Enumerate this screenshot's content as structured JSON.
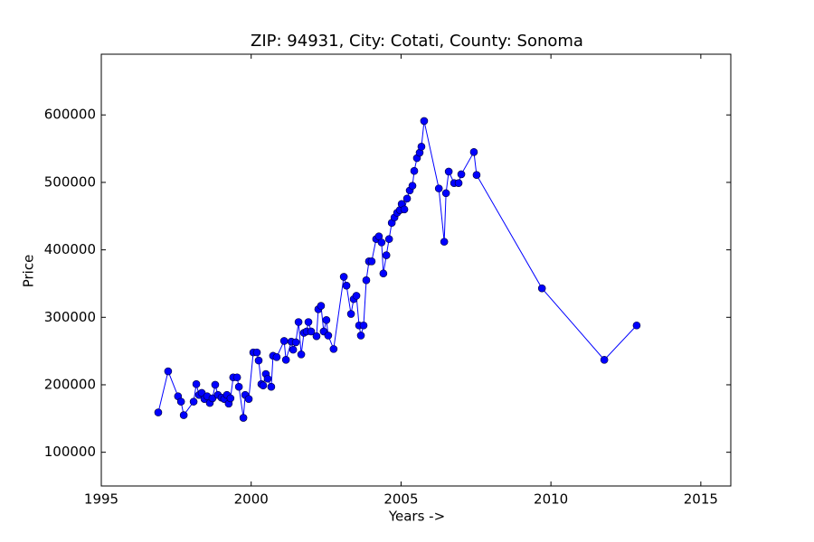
{
  "chart_data": {
    "type": "line",
    "title": "ZIP: 94931, City: Cotati, County: Sonoma",
    "x_label": "Years ->",
    "y_label": "Price",
    "x": [
      1996.9,
      1997.23,
      1997.56,
      1997.66,
      1997.75,
      1998.08,
      1998.17,
      1998.26,
      1998.35,
      1998.44,
      1998.53,
      1998.62,
      1998.71,
      1998.8,
      1998.89,
      1999.01,
      1999.1,
      1999.19,
      1999.25,
      1999.31,
      1999.4,
      1999.53,
      1999.59,
      1999.74,
      1999.8,
      1999.92,
      2000.07,
      2000.19,
      2000.25,
      2000.34,
      2000.4,
      2000.49,
      2000.55,
      2000.67,
      2000.73,
      2000.85,
      2001.1,
      2001.16,
      2001.34,
      2001.4,
      2001.49,
      2001.58,
      2001.67,
      2001.76,
      2001.85,
      2001.91,
      2002.0,
      2002.18,
      2002.24,
      2002.33,
      2002.42,
      2002.51,
      2002.57,
      2002.75,
      2003.09,
      2003.18,
      2003.33,
      2003.42,
      2003.51,
      2003.6,
      2003.66,
      2003.75,
      2003.84,
      2003.93,
      2004.02,
      2004.17,
      2004.26,
      2004.35,
      2004.41,
      2004.51,
      2004.6,
      2004.69,
      2004.78,
      2004.87,
      2004.96,
      2005.02,
      2005.11,
      2005.2,
      2005.29,
      2005.38,
      2005.44,
      2005.53,
      2005.62,
      2005.68,
      2005.77,
      2006.26,
      2006.44,
      2006.5,
      2006.59,
      2006.77,
      2006.92,
      2007.01,
      2007.43,
      2007.52,
      2009.7,
      2011.78,
      2012.86
    ],
    "series": [
      {
        "name": "Price",
        "color": "#0000ff",
        "values": [
          159000,
          220000,
          183000,
          175000,
          155000,
          175000,
          201000,
          185000,
          188000,
          179000,
          183000,
          173000,
          180000,
          200000,
          185000,
          181000,
          179000,
          185000,
          172000,
          180000,
          211000,
          211000,
          197000,
          151000,
          185000,
          179000,
          248000,
          248000,
          236000,
          201000,
          199000,
          216000,
          209000,
          197000,
          243000,
          241000,
          265000,
          237000,
          264000,
          252000,
          263000,
          293000,
          245000,
          277000,
          279000,
          293000,
          279000,
          272000,
          312000,
          317000,
          279000,
          296000,
          273000,
          253000,
          360000,
          347000,
          305000,
          327000,
          332000,
          288000,
          273000,
          288000,
          355000,
          383000,
          383000,
          416000,
          420000,
          411000,
          365000,
          392000,
          416000,
          440000,
          448000,
          455000,
          459000,
          468000,
          460000,
          476000,
          488000,
          495000,
          517000,
          536000,
          544000,
          553000,
          591000,
          491000,
          412000,
          484000,
          516000,
          499000,
          499000,
          512000,
          545000,
          511000,
          343000,
          237000,
          288000
        ]
      }
    ],
    "xlim": [
      1995,
      2016
    ],
    "xticks": [
      1995,
      2000,
      2005,
      2010,
      2015
    ],
    "ylim": [
      50000,
      690000
    ],
    "yticks": [
      100000,
      200000,
      300000,
      400000,
      500000,
      600000
    ],
    "grid": false
  }
}
